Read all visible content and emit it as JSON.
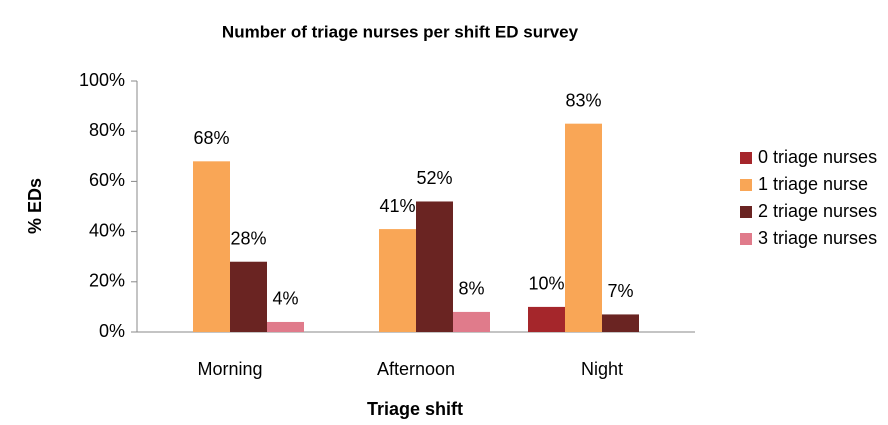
{
  "chart_data": {
    "type": "bar",
    "title": "Number of triage nurses per shift ED survey",
    "x_label": "Triage shift",
    "y_label": "% EDs",
    "categories": [
      "Morning",
      "Afternoon",
      "Night"
    ],
    "series": [
      {
        "name": "0 triage nurses",
        "color": "#a5262b",
        "values": [
          null,
          null,
          10
        ],
        "value_labels": [
          null,
          null,
          "10%"
        ]
      },
      {
        "name": "1 triage nurse",
        "color": "#f9a656",
        "values": [
          68,
          41,
          83
        ],
        "value_labels": [
          "68%",
          "41%",
          "83%"
        ]
      },
      {
        "name": "2 triage nurses",
        "color": "#6a2422",
        "values": [
          28,
          52,
          7
        ],
        "value_labels": [
          "28%",
          "52%",
          "7%"
        ]
      },
      {
        "name": "3 triage nurses",
        "color": "#e07b8b",
        "values": [
          4,
          8,
          null
        ],
        "value_labels": [
          "4%",
          "8%",
          null
        ]
      }
    ],
    "ylim": [
      0,
      100
    ],
    "yticks": [
      {
        "value": 0,
        "label": "0%"
      },
      {
        "value": 20,
        "label": "20%"
      },
      {
        "value": 40,
        "label": "40%"
      },
      {
        "value": 60,
        "label": "60%"
      },
      {
        "value": 80,
        "label": "80%"
      },
      {
        "value": 100,
        "label": "100%"
      }
    ],
    "grid": false,
    "legend": "right"
  }
}
